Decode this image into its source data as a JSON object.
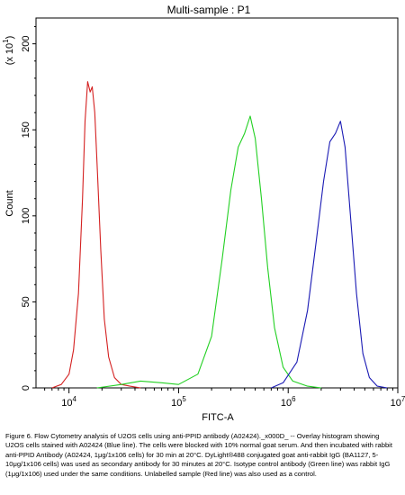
{
  "chart_data": {
    "type": "line",
    "title": "Multi-sample : P1",
    "xlabel": "FITC-A",
    "ylabel": "Count",
    "y_multiplier_label": "(x 10",
    "y_multiplier_exp": "1",
    "y_multiplier_close": ")",
    "x_scale": "log",
    "xlim": [
      5000,
      10000000
    ],
    "ylim": [
      0,
      215
    ],
    "x_ticks": [
      {
        "value": 10000,
        "base": "10",
        "exp": "4"
      },
      {
        "value": 100000,
        "base": "10",
        "exp": "5"
      },
      {
        "value": 1000000,
        "base": "10",
        "exp": "6"
      },
      {
        "value": 10000000,
        "base": "10",
        "exp": "7"
      }
    ],
    "y_ticks": [
      {
        "value": 0,
        "label": "0"
      },
      {
        "value": 50,
        "label": "50"
      },
      {
        "value": 100,
        "label": "100"
      },
      {
        "value": 150,
        "label": "150"
      },
      {
        "value": 200,
        "label": "200"
      }
    ],
    "series": [
      {
        "color": "#d42020",
        "points": [
          [
            7000,
            0
          ],
          [
            8500,
            2
          ],
          [
            10000,
            8
          ],
          [
            11000,
            22
          ],
          [
            12200,
            55
          ],
          [
            13300,
            110
          ],
          [
            14000,
            155
          ],
          [
            14800,
            178
          ],
          [
            15600,
            172
          ],
          [
            16300,
            175
          ],
          [
            17200,
            160
          ],
          [
            18200,
            125
          ],
          [
            19500,
            80
          ],
          [
            21000,
            40
          ],
          [
            23000,
            18
          ],
          [
            26000,
            6
          ],
          [
            30000,
            2
          ],
          [
            36000,
            1
          ],
          [
            45000,
            0
          ]
        ]
      },
      {
        "color": "#22d022",
        "points": [
          [
            18000,
            0
          ],
          [
            30000,
            2
          ],
          [
            45000,
            4
          ],
          [
            70000,
            3
          ],
          [
            100000,
            2
          ],
          [
            150000,
            8
          ],
          [
            200000,
            30
          ],
          [
            250000,
            75
          ],
          [
            300000,
            115
          ],
          [
            350000,
            140
          ],
          [
            400000,
            148
          ],
          [
            450000,
            158
          ],
          [
            500000,
            145
          ],
          [
            570000,
            110
          ],
          [
            650000,
            70
          ],
          [
            750000,
            35
          ],
          [
            900000,
            12
          ],
          [
            1100000,
            4
          ],
          [
            1500000,
            1
          ],
          [
            2000000,
            0
          ]
        ]
      },
      {
        "color": "#1a1ab4",
        "points": [
          [
            700000,
            0
          ],
          [
            900000,
            3
          ],
          [
            1200000,
            15
          ],
          [
            1500000,
            45
          ],
          [
            1800000,
            85
          ],
          [
            2100000,
            120
          ],
          [
            2400000,
            143
          ],
          [
            2700000,
            148
          ],
          [
            3000000,
            155
          ],
          [
            3300000,
            140
          ],
          [
            3700000,
            100
          ],
          [
            4200000,
            55
          ],
          [
            4800000,
            20
          ],
          [
            5500000,
            6
          ],
          [
            6500000,
            1
          ],
          [
            8000000,
            0
          ]
        ]
      }
    ]
  },
  "caption": "Figure 6. Flow Cytometry analysis of U2OS cells using anti-PPID antibody (A02424)._x000D_ -- Overlay histogram showing U2OS cells stained with A02424 (Blue line). The cells were blocked with 10% normal goat serum. And then incubated with rabbit anti-PPID Antibody (A02424, 1μg/1x106 cells) for 30 min at 20°C. DyLight®488 conjugated goat anti-rabbit IgG (BA1127, 5-10μg/1x106 cells) was used as secondary antibody for 30 minutes at 20°C. Isotype control antibody (Green line) was rabbit IgG (1μg/1x106) used under the same conditions. Unlabelled sample (Red line) was also used as a control."
}
